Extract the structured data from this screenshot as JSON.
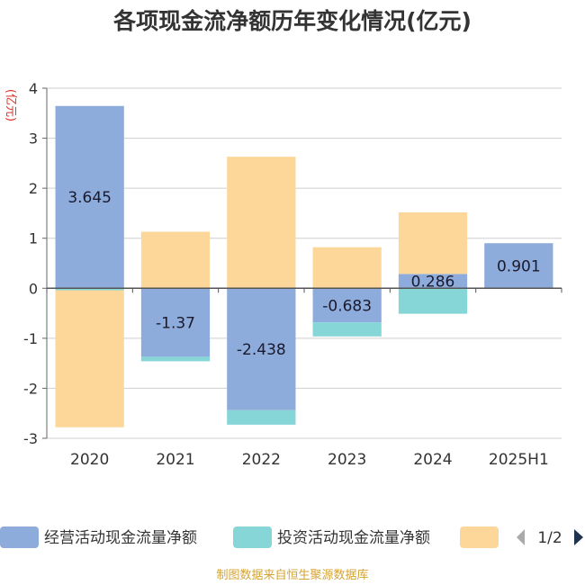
{
  "title": "各项现金流净额历年变化情况(亿元)",
  "unit_label": "(亿元)",
  "source": "制图数据来自恒生聚源数据库",
  "legend": {
    "items": [
      {
        "name": "经营活动现金流量净额",
        "color": "#8eacdb"
      },
      {
        "name": "投资活动现金流量净额",
        "color": "#86d6d8"
      },
      {
        "name": "",
        "color": "#fdd79a"
      }
    ],
    "page_indicator": "1/2"
  },
  "chart_data": {
    "type": "bar",
    "stacked": true,
    "categories": [
      "2020",
      "2021",
      "2022",
      "2023",
      "2024",
      "2025H1"
    ],
    "ylim": [
      -3,
      4
    ],
    "yticks": [
      -3,
      -2,
      -1,
      0,
      1,
      2,
      3,
      4
    ],
    "grid": true,
    "legend_position": "bottom",
    "series": [
      {
        "name": "经营活动现金流量净额",
        "color": "#8eacdb",
        "values": [
          3.645,
          -1.37,
          -2.438,
          -0.683,
          0.286,
          0.901
        ],
        "labels": [
          "3.645",
          "-1.37",
          "-2.438",
          "-0.683",
          "0.286",
          "0.901"
        ]
      },
      {
        "name": "投资活动现金流量净额",
        "color": "#86d6d8",
        "values": [
          -0.04,
          -0.09,
          -0.29,
          -0.28,
          -0.51,
          0
        ]
      },
      {
        "color": "#fdd79a",
        "values": [
          -2.74,
          1.13,
          2.63,
          0.82,
          1.23,
          0
        ]
      }
    ]
  }
}
